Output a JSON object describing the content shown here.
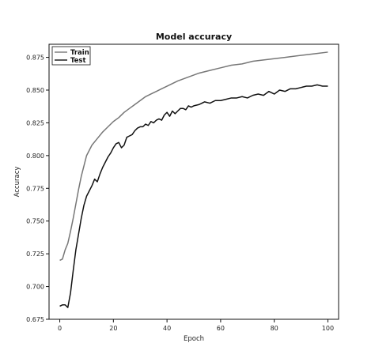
{
  "chart_data": {
    "type": "line",
    "title": "Model accuracy",
    "xlabel": "Epoch",
    "ylabel": "Accuracy",
    "xlim": [
      -4,
      104
    ],
    "ylim": [
      0.675,
      0.885
    ],
    "xticks": [
      0,
      20,
      40,
      60,
      80,
      100
    ],
    "yticks": [
      0.675,
      0.7,
      0.725,
      0.75,
      0.775,
      0.8,
      0.825,
      0.85,
      0.875
    ],
    "ytick_labels": [
      "0.675",
      "0.700",
      "0.725",
      "0.750",
      "0.775",
      "0.800",
      "0.825",
      "0.850",
      "0.875"
    ],
    "grid": false,
    "legend_position": "top-left",
    "series": [
      {
        "name": "Train",
        "color": "#777777",
        "x": [
          0,
          1,
          2,
          3,
          4,
          5,
          6,
          7,
          8,
          9,
          10,
          12,
          14,
          16,
          18,
          20,
          22,
          24,
          26,
          28,
          30,
          32,
          34,
          36,
          38,
          40,
          44,
          48,
          52,
          56,
          60,
          64,
          68,
          72,
          76,
          80,
          84,
          88,
          92,
          96,
          100
        ],
        "y": [
          0.72,
          0.721,
          0.728,
          0.733,
          0.742,
          0.752,
          0.763,
          0.774,
          0.784,
          0.792,
          0.8,
          0.808,
          0.813,
          0.818,
          0.822,
          0.826,
          0.829,
          0.833,
          0.836,
          0.839,
          0.842,
          0.845,
          0.847,
          0.849,
          0.851,
          0.853,
          0.857,
          0.86,
          0.863,
          0.865,
          0.867,
          0.869,
          0.87,
          0.872,
          0.873,
          0.874,
          0.875,
          0.876,
          0.877,
          0.878,
          0.879
        ]
      },
      {
        "name": "Test",
        "color": "#111111",
        "x": [
          0,
          1,
          2,
          3,
          4,
          5,
          6,
          7,
          8,
          9,
          10,
          11,
          12,
          13,
          14,
          15,
          16,
          17,
          18,
          19,
          20,
          21,
          22,
          23,
          24,
          25,
          26,
          27,
          28,
          29,
          30,
          31,
          32,
          33,
          34,
          35,
          36,
          37,
          38,
          39,
          40,
          41,
          42,
          43,
          44,
          45,
          46,
          47,
          48,
          49,
          50,
          52,
          54,
          56,
          58,
          60,
          62,
          64,
          66,
          68,
          70,
          72,
          74,
          76,
          78,
          80,
          82,
          84,
          86,
          88,
          90,
          92,
          94,
          96,
          98,
          100
        ],
        "y": [
          0.685,
          0.686,
          0.686,
          0.684,
          0.695,
          0.712,
          0.728,
          0.74,
          0.752,
          0.762,
          0.769,
          0.773,
          0.777,
          0.782,
          0.78,
          0.786,
          0.791,
          0.795,
          0.799,
          0.802,
          0.806,
          0.809,
          0.81,
          0.806,
          0.808,
          0.814,
          0.815,
          0.816,
          0.819,
          0.821,
          0.822,
          0.822,
          0.824,
          0.823,
          0.826,
          0.825,
          0.827,
          0.828,
          0.827,
          0.831,
          0.833,
          0.83,
          0.834,
          0.832,
          0.834,
          0.836,
          0.836,
          0.835,
          0.838,
          0.837,
          0.838,
          0.839,
          0.841,
          0.84,
          0.842,
          0.842,
          0.843,
          0.844,
          0.844,
          0.845,
          0.844,
          0.846,
          0.847,
          0.846,
          0.849,
          0.847,
          0.85,
          0.849,
          0.851,
          0.851,
          0.852,
          0.853,
          0.853,
          0.854,
          0.853,
          0.853
        ]
      }
    ]
  }
}
